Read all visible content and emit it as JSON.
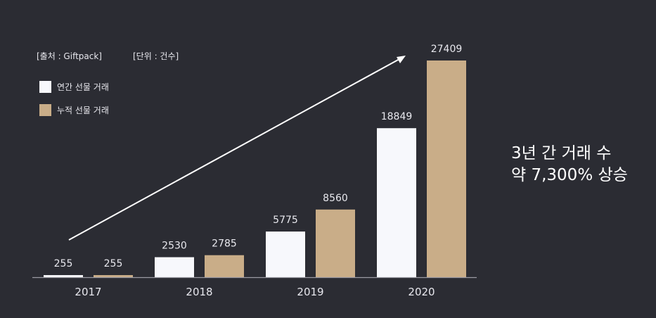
{
  "notes": {
    "source": "[출처 : Giftpack]",
    "unit": "[단위 : 건수]"
  },
  "headline": {
    "line1": "3년 간 거래 수",
    "line2": "약 7,300% 상승"
  },
  "colors": {
    "background": "#2b2c33",
    "annual": "#f7f8fc",
    "cumulative": "#c9ad88",
    "text": "#e8e8ee",
    "axis": "#9a9aa2",
    "arrow": "#ffffff"
  },
  "chart_data": {
    "type": "bar",
    "categories": [
      "2017",
      "2018",
      "2019",
      "2020"
    ],
    "series": [
      {
        "name": "연간 선물 거래",
        "values": [
          255,
          2530,
          5775,
          18849
        ]
      },
      {
        "name": "누적 선물 거래",
        "values": [
          255,
          2785,
          8560,
          27409
        ]
      }
    ],
    "ylim": [
      0,
      27409
    ],
    "grid": false,
    "legend": "top-left",
    "data_labels": true,
    "annotation": "upward trend arrow"
  }
}
